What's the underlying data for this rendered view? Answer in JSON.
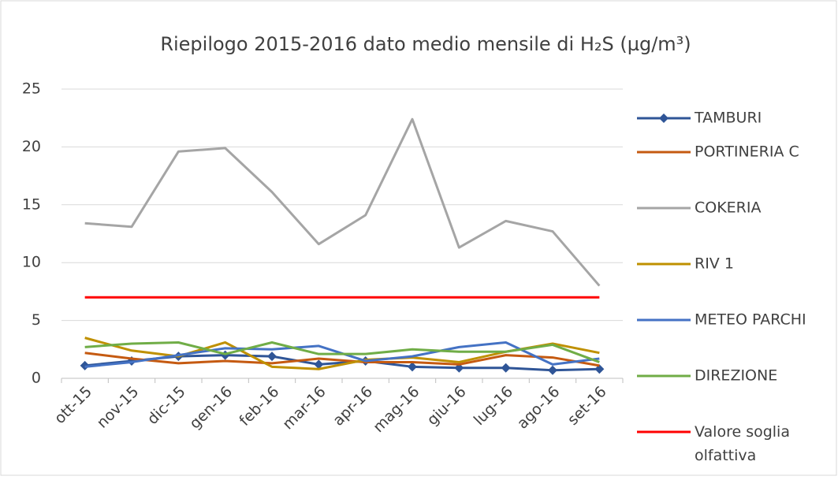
{
  "chart_data": {
    "type": "line",
    "title": "Riepilogo 2015-2016 dato medio mensile di H₂S (µg/m³)",
    "categories": [
      "ott-15",
      "nov-15",
      "dic-15",
      "gen-16",
      "feb-16",
      "mar-16",
      "apr-16",
      "mag-16",
      "giu-16",
      "lug-16",
      "ago-16",
      "set-16"
    ],
    "series": [
      {
        "name": "TAMBURI",
        "color": "#2f5597",
        "marker": "diamond",
        "values": [
          1.1,
          1.5,
          1.9,
          2.0,
          1.9,
          1.2,
          1.5,
          1.0,
          0.9,
          0.9,
          0.7,
          0.8
        ]
      },
      {
        "name": "PORTINERIA C",
        "color": "#c55a11",
        "values": [
          2.2,
          1.7,
          1.3,
          1.5,
          1.3,
          1.7,
          1.4,
          1.4,
          1.2,
          2.0,
          1.8,
          1.1
        ]
      },
      {
        "name": "COKERIA",
        "color": "#a5a5a5",
        "values": [
          13.4,
          13.1,
          19.6,
          19.9,
          16.1,
          11.6,
          14.1,
          22.4,
          11.3,
          13.6,
          12.7,
          8.0
        ]
      },
      {
        "name": "RIV 1",
        "color": "#bf9000",
        "values": [
          3.5,
          2.4,
          1.9,
          3.1,
          1.0,
          0.8,
          1.6,
          1.8,
          1.4,
          2.3,
          3.0,
          2.2
        ]
      },
      {
        "name": "METEO PARCHI",
        "color": "#4472c4",
        "values": [
          1.0,
          1.4,
          2.0,
          2.6,
          2.5,
          2.8,
          1.5,
          1.9,
          2.7,
          3.1,
          1.2,
          1.7
        ]
      },
      {
        "name": "DIREZIONE",
        "color": "#70ad47",
        "values": [
          2.7,
          3.0,
          3.1,
          2.1,
          3.1,
          2.1,
          2.1,
          2.5,
          2.3,
          2.3,
          2.9,
          1.4
        ]
      },
      {
        "name": "Valore soglia olfattiva",
        "color": "#ff0000",
        "values": [
          7,
          7,
          7,
          7,
          7,
          7,
          7,
          7,
          7,
          7,
          7,
          7
        ]
      }
    ],
    "ylim": [
      0,
      25
    ],
    "yticks": [
      0,
      5,
      10,
      15,
      20,
      25
    ],
    "grid": true,
    "legend": "right"
  }
}
